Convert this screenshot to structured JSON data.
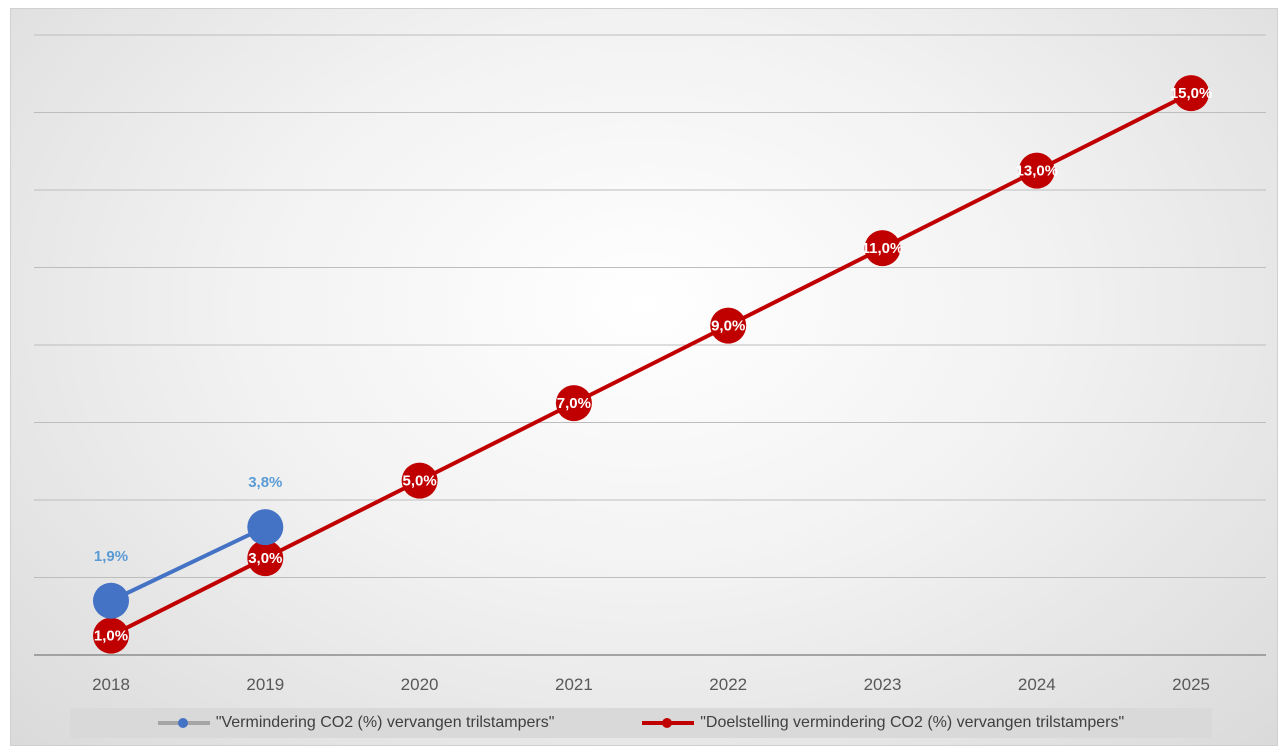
{
  "chart_data": {
    "type": "line",
    "title": "",
    "xlabel": "",
    "ylabel": "",
    "categories": [
      "2018",
      "2019",
      "2020",
      "2021",
      "2022",
      "2023",
      "2024",
      "2025"
    ],
    "ylim": [
      0,
      16
    ],
    "grid": true,
    "legend_position": "bottom",
    "series": [
      {
        "name": "\"Vermindering CO2 (%) vervangen trilstampers\"",
        "values": [
          1.9,
          3.8,
          null,
          null,
          null,
          null,
          null,
          null
        ],
        "labels": [
          "1,9%",
          "3,8%",
          null,
          null,
          null,
          null,
          null,
          null
        ],
        "color": "#4472c4",
        "legend_color": "#a5a5a5",
        "label_color": "#5b9bd5"
      },
      {
        "name": "\"Doelstelling vermindering CO2 (%) vervangen trilstampers\"",
        "values": [
          1.0,
          3.0,
          5.0,
          7.0,
          9.0,
          11.0,
          13.0,
          15.0
        ],
        "labels": [
          "1,0%",
          "3,0%",
          "5,0%",
          "7,0%",
          "9,0%",
          "11,0%",
          "13,0%",
          "15,0%"
        ],
        "color": "#c00000",
        "legend_color": "#c00000",
        "label_color": "#ffffff"
      }
    ]
  }
}
